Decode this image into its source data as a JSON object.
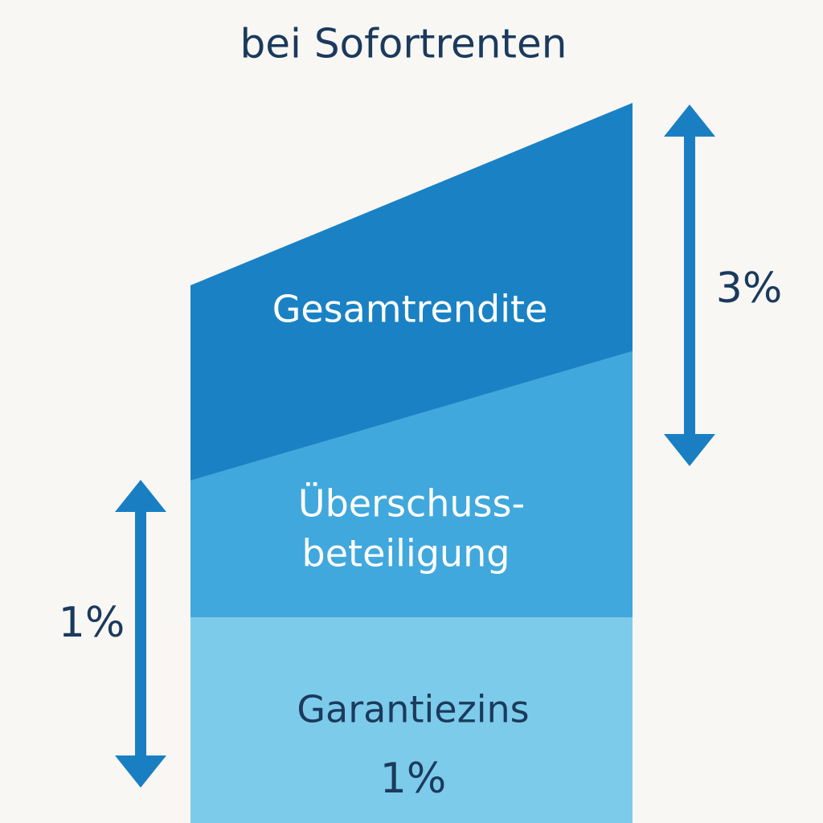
{
  "header": {
    "title": "bei Sofortrenten"
  },
  "layers": [
    {
      "label": "Gesamtrendite"
    },
    {
      "label": [
        "Überschuss-",
        "beteiligung"
      ]
    },
    {
      "label": "Garantiezins",
      "value_label": "1%"
    }
  ],
  "arrows": [
    {
      "label": "3%"
    },
    {
      "label": "1%"
    }
  ]
}
